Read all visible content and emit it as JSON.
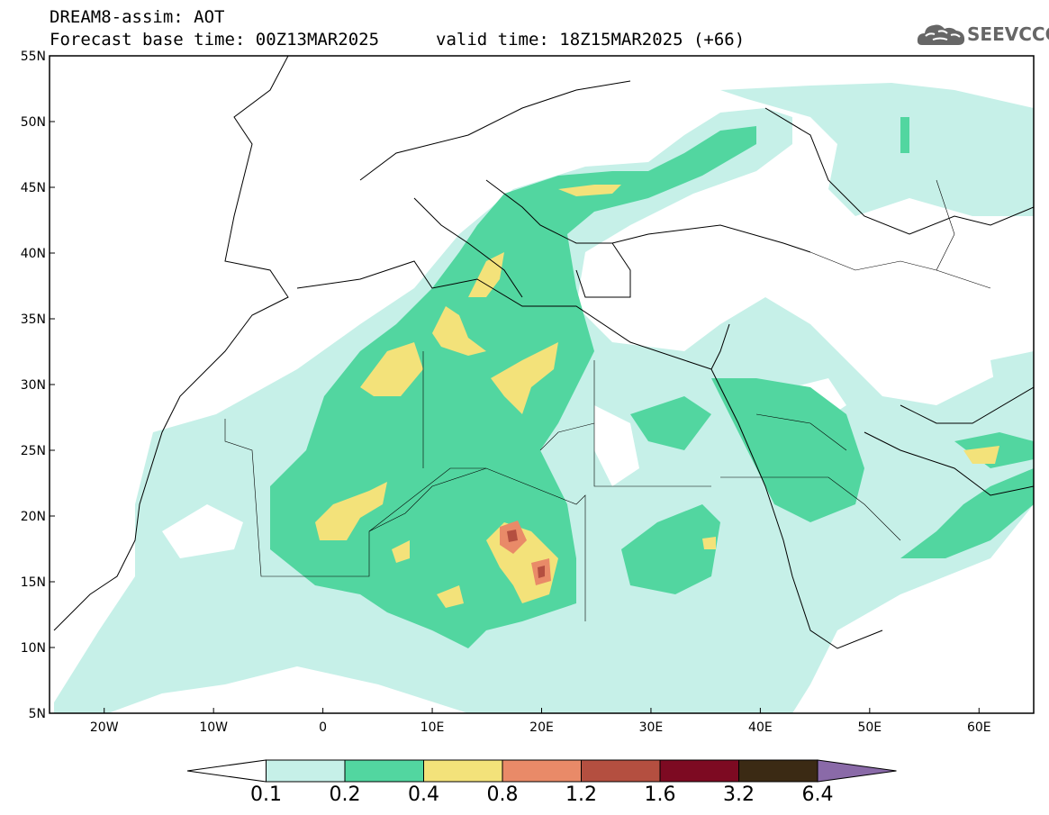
{
  "header": {
    "title_line1": "DREAM8-assim: AOT",
    "title_line2": "Forecast base time: 00Z13MAR2025",
    "valid_time": "valid time: 18Z15MAR2025 (+66)"
  },
  "logo": {
    "text": "SEEVCCC",
    "icon": "cloud-icon"
  },
  "map": {
    "lon_range": [
      -25,
      65
    ],
    "lat_range": [
      5,
      55
    ],
    "lon_ticks": [
      {
        "value": -20,
        "label": "20W"
      },
      {
        "value": -10,
        "label": "10W"
      },
      {
        "value": 0,
        "label": "0"
      },
      {
        "value": 10,
        "label": "10E"
      },
      {
        "value": 20,
        "label": "20E"
      },
      {
        "value": 30,
        "label": "30E"
      },
      {
        "value": 40,
        "label": "40E"
      },
      {
        "value": 50,
        "label": "50E"
      },
      {
        "value": 60,
        "label": "60E"
      }
    ],
    "lat_ticks": [
      {
        "value": 55,
        "label": "55N"
      },
      {
        "value": 50,
        "label": "50N"
      },
      {
        "value": 45,
        "label": "45N"
      },
      {
        "value": 40,
        "label": "40N"
      },
      {
        "value": 35,
        "label": "35N"
      },
      {
        "value": 30,
        "label": "30N"
      },
      {
        "value": 25,
        "label": "25N"
      },
      {
        "value": 20,
        "label": "20N"
      },
      {
        "value": 15,
        "label": "15N"
      },
      {
        "value": 10,
        "label": "10N"
      },
      {
        "value": 5,
        "label": "5N"
      }
    ]
  },
  "colorbar": {
    "levels": [
      {
        "label": "0.1"
      },
      {
        "label": "0.2"
      },
      {
        "label": "0.4"
      },
      {
        "label": "0.8"
      },
      {
        "label": "1.2"
      },
      {
        "label": "1.6"
      },
      {
        "label": "3.2"
      },
      {
        "label": "6.4"
      }
    ],
    "colors": [
      "#ffffff",
      "#c6f0e8",
      "#52d6a0",
      "#f3e27a",
      "#e98a68",
      "#b44f40",
      "#7d0a22",
      "#3b2a14",
      "#8a6aa8"
    ]
  }
}
